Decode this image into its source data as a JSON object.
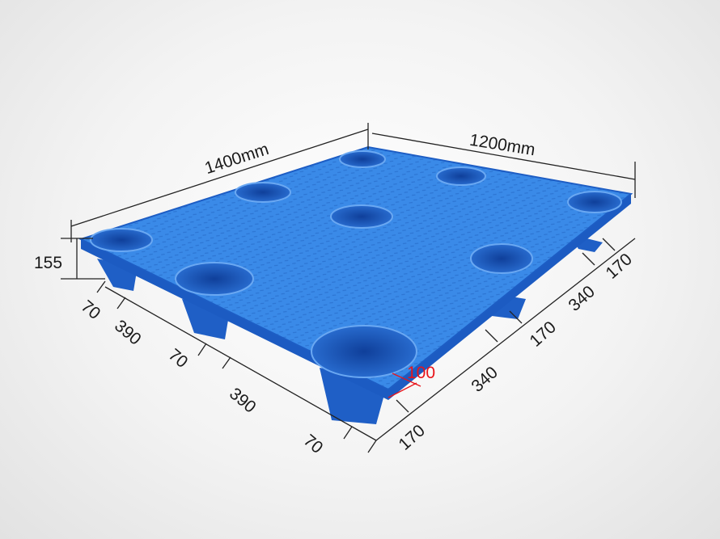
{
  "product": "plastic-pallet",
  "colors": {
    "pallet": "#2f7fe0",
    "pallet_dark": "#1a55b8",
    "dimension_line": "#222222",
    "highlight_dimension": "#e8141a"
  },
  "dimensions": {
    "length": "1400mm",
    "width": "1200mm",
    "height": "155",
    "left_side": [
      "70",
      "390",
      "70",
      "390",
      "70"
    ],
    "right_side": [
      "170",
      "340",
      "170",
      "340",
      "170"
    ],
    "leg_height": "100"
  }
}
